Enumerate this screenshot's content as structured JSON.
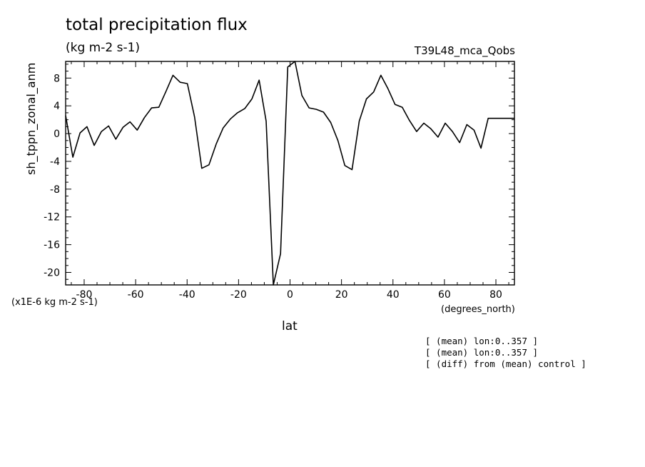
{
  "title": "total precipitation flux",
  "units": "(kg m-2 s-1)",
  "dataset": "T39L48_mca_Qobs",
  "scale_factor": "(x1E-6 kg m-2 s-1)",
  "x_units": "(degrees_north)",
  "notes": [
    "[ (mean) lon:0..357 ]",
    "[ (mean) lon:0..357 ]",
    "[ (diff) from (mean) control ]"
  ],
  "chart_data": {
    "type": "line",
    "title": "total precipitation flux",
    "xlabel": "lat",
    "ylabel": "sh_tppn_zonal_anm",
    "xlim": [
      -87.2,
      87.2
    ],
    "ylim": [
      -21.8,
      10.4
    ],
    "xticks": [
      -80,
      -60,
      -40,
      -20,
      0,
      20,
      40,
      60,
      80
    ],
    "yticks": [
      -20,
      -16,
      -12,
      -8,
      -4,
      0,
      4,
      8
    ],
    "grid": false,
    "series": [
      {
        "x": [
          -87.2,
          -84.4,
          -81.6,
          -78.9,
          -76.1,
          -73.3,
          -70.5,
          -67.7,
          -64.9,
          -62.2,
          -59.4,
          -56.6,
          -53.8,
          -51.0,
          -48.2,
          -45.5,
          -42.7,
          -39.9,
          -37.1,
          -34.3,
          -31.5,
          -28.7,
          -26.0,
          -23.2,
          -20.4,
          -17.6,
          -14.8,
          -12.0,
          -9.3,
          -6.5,
          -3.7,
          -0.9,
          1.9,
          4.6,
          7.4,
          10.2,
          13.0,
          15.8,
          18.6,
          21.3,
          24.1,
          26.9,
          29.7,
          32.5,
          35.3,
          38.0,
          40.8,
          43.6,
          46.4,
          49.2,
          52.0,
          54.7,
          57.5,
          60.3,
          63.1,
          65.9,
          68.7,
          71.5,
          74.2,
          77.0,
          79.8,
          82.6,
          85.4,
          87.2
        ],
        "y": [
          2.6,
          -3.4,
          0.1,
          1.0,
          -1.7,
          0.3,
          1.1,
          -0.8,
          0.9,
          1.7,
          0.5,
          2.3,
          3.7,
          3.8,
          6.1,
          8.4,
          7.4,
          7.2,
          2.4,
          -5.0,
          -4.5,
          -1.5,
          0.8,
          2.1,
          3.0,
          3.6,
          5.0,
          7.7,
          1.8,
          -21.8,
          -17.3,
          9.6,
          10.4,
          5.5,
          3.7,
          3.5,
          3.1,
          1.6,
          -1.0,
          -4.6,
          -5.2,
          1.8,
          5.0,
          6.0,
          8.4,
          6.5,
          4.2,
          3.8,
          1.9,
          0.3,
          1.5,
          0.7,
          -0.5,
          1.5,
          0.3,
          -1.3,
          1.3,
          0.5,
          -2.1,
          2.2,
          2.2,
          2.2,
          2.2,
          2.2
        ]
      }
    ]
  }
}
